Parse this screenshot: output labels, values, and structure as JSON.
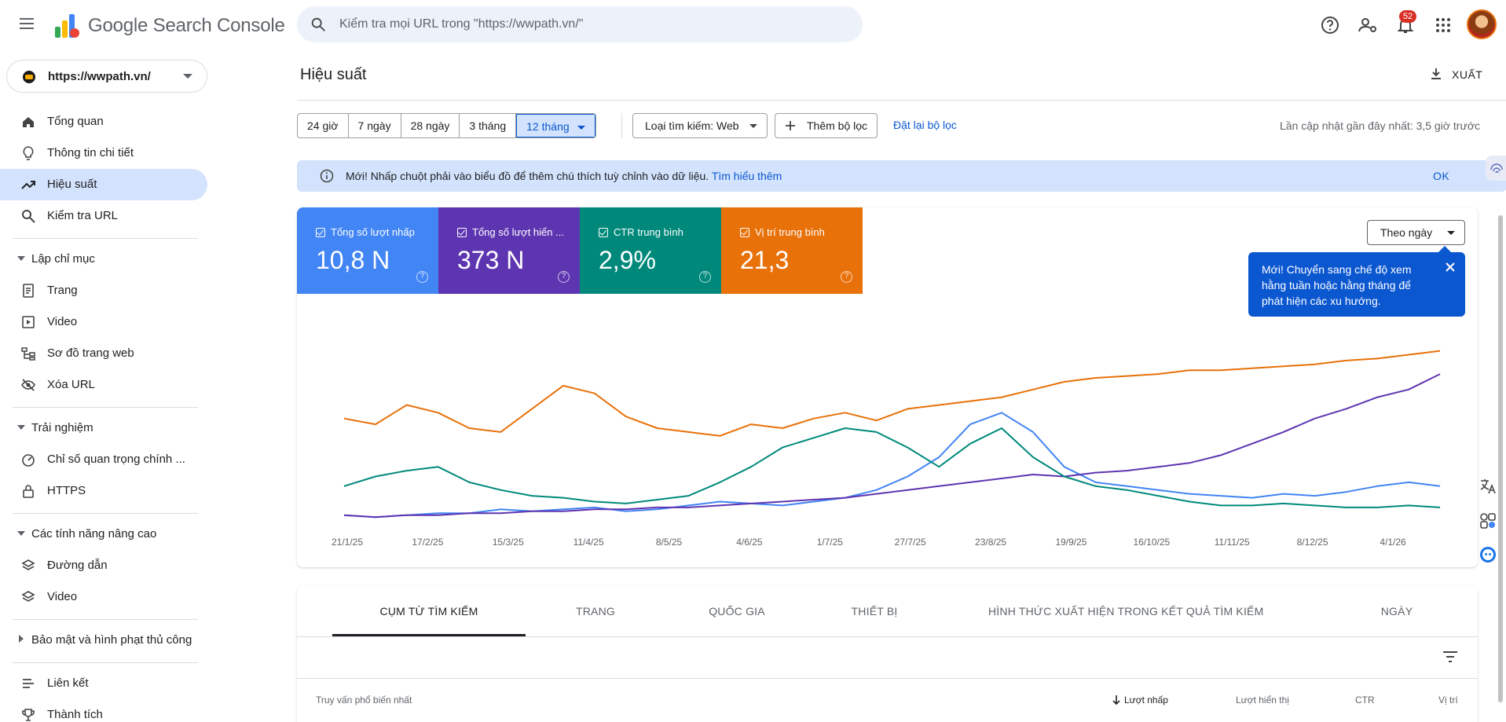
{
  "app": {
    "brand": "Google Search Console",
    "search_placeholder": "Kiểm tra mọi URL trong \"https://wwpath.vn/\"",
    "notifications_count": "52"
  },
  "sidebar": {
    "property": "https://wwpath.vn/",
    "items": [
      {
        "label": "Tổng quan",
        "icon": "home-icon"
      },
      {
        "label": "Thông tin chi tiết",
        "icon": "lightbulb-icon"
      },
      {
        "label": "Hiệu suất",
        "icon": "trending-up-icon"
      },
      {
        "label": "Kiểm tra URL",
        "icon": "search-icon"
      }
    ],
    "section_indexing": {
      "label": "Lập chỉ mục",
      "items": [
        {
          "label": "Trang",
          "icon": "page-icon"
        },
        {
          "label": "Video",
          "icon": "video-icon"
        },
        {
          "label": "Sơ đồ trang web",
          "icon": "sitemap-icon"
        },
        {
          "label": "Xóa URL",
          "icon": "eye-off-icon"
        }
      ]
    },
    "section_experience": {
      "label": "Trải nghiệm",
      "items": [
        {
          "label": "Chỉ số quan trọng chính ...",
          "icon": "speed-icon"
        },
        {
          "label": "HTTPS",
          "icon": "lock-icon"
        }
      ]
    },
    "section_enhancements": {
      "label": "Các tính năng nâng cao",
      "items": [
        {
          "label": "Đường dẫn",
          "icon": "layers-icon"
        },
        {
          "label": "Video",
          "icon": "layers-icon"
        }
      ]
    },
    "section_security": {
      "label": "Bảo mật và hình phạt thủ công"
    },
    "bottom_items": [
      {
        "label": "Liên kết",
        "icon": "link-icon"
      },
      {
        "label": "Thành tích",
        "icon": "trophy-icon"
      }
    ]
  },
  "main": {
    "title": "Hiệu suất",
    "export_label": "XUẤT",
    "date_ranges": [
      "24 giờ",
      "7 ngày",
      "28 ngày",
      "3 tháng",
      "12 tháng"
    ],
    "selected_range": "12 tháng",
    "search_type": "Loại tìm kiếm: Web",
    "add_filter": "Thêm bộ lọc",
    "reset_filters": "Đặt lại bộ lọc",
    "last_updated": "Lần cập nhật gần đây nhất: 3,5 giờ trước",
    "banner": {
      "text": "Mới! Nhấp chuột phải vào biểu đồ để thêm chú thích tuỳ chỉnh vào dữ liệu.",
      "link": "Tìm hiểu thêm",
      "ok": "OK"
    },
    "metrics": [
      {
        "label": "Tổng số lượt nhấp",
        "value": "10,8 N",
        "color": "#4285f4"
      },
      {
        "label": "Tổng số lượt hiển ...",
        "value": "373 N",
        "color": "#5e35b1"
      },
      {
        "label": "CTR trung bình",
        "value": "2,9%",
        "color": "#00897b"
      },
      {
        "label": "Vị trí trung bình",
        "value": "21,3",
        "color": "#e8710a"
      }
    ],
    "granularity": "Theo ngày",
    "tooltip": "Mới! Chuyển sang chế độ xem hằng tuần hoặc hằng tháng để phát hiện các xu hướng.",
    "tabs": [
      "CỤM TỪ TÌM KIẾM",
      "TRANG",
      "QUỐC GIA",
      "THIẾT BỊ",
      "HÌNH THỨC XUẤT HIỆN TRONG KẾT QUẢ TÌM KIẾM",
      "NGÀY"
    ],
    "table_headers": {
      "query": "Truy vấn phổ biến nhất",
      "clicks": "Lượt nhấp",
      "impressions": "Lượt hiển thị",
      "ctr": "CTR",
      "position": "Vị trí"
    }
  },
  "chart_data": {
    "type": "line",
    "x_ticks": [
      "21/1/25",
      "17/2/25",
      "15/3/25",
      "11/4/25",
      "8/5/25",
      "4/6/25",
      "1/7/25",
      "27/7/25",
      "23/8/25",
      "19/9/25",
      "16/10/25",
      "11/11/25",
      "8/12/25",
      "4/1/26"
    ],
    "series": [
      {
        "name": "Tổng số lượt nhấp",
        "color": "#4285f4",
        "values": [
          5,
          4,
          5,
          6,
          6,
          8,
          7,
          8,
          9,
          7,
          8,
          10,
          12,
          11,
          10,
          12,
          14,
          18,
          25,
          35,
          52,
          58,
          48,
          30,
          22,
          20,
          18,
          16,
          15,
          14,
          16,
          15,
          17,
          20,
          22,
          20
        ]
      },
      {
        "name": "Tổng số lượt hiển ...",
        "color": "#5e35b1",
        "values": [
          5,
          4,
          5,
          5,
          6,
          6,
          7,
          7,
          8,
          8,
          9,
          9,
          10,
          11,
          12,
          13,
          14,
          16,
          18,
          20,
          22,
          24,
          26,
          25,
          27,
          28,
          30,
          32,
          36,
          42,
          48,
          55,
          60,
          66,
          70,
          78
        ]
      },
      {
        "name": "CTR trung bình",
        "color": "#00897b",
        "values": [
          20,
          25,
          28,
          30,
          22,
          18,
          15,
          14,
          12,
          11,
          13,
          15,
          22,
          30,
          40,
          45,
          50,
          48,
          40,
          30,
          42,
          50,
          35,
          25,
          20,
          18,
          15,
          12,
          10,
          10,
          11,
          10,
          9,
          9,
          10,
          9
        ]
      },
      {
        "name": "Vị trí trung bình",
        "color": "#e8710a",
        "values": [
          55,
          52,
          62,
          58,
          50,
          48,
          60,
          72,
          68,
          56,
          50,
          48,
          46,
          52,
          50,
          55,
          58,
          54,
          60,
          62,
          64,
          66,
          70,
          74,
          76,
          77,
          78,
          80,
          80,
          81,
          82,
          83,
          85,
          86,
          88,
          90
        ]
      }
    ]
  }
}
